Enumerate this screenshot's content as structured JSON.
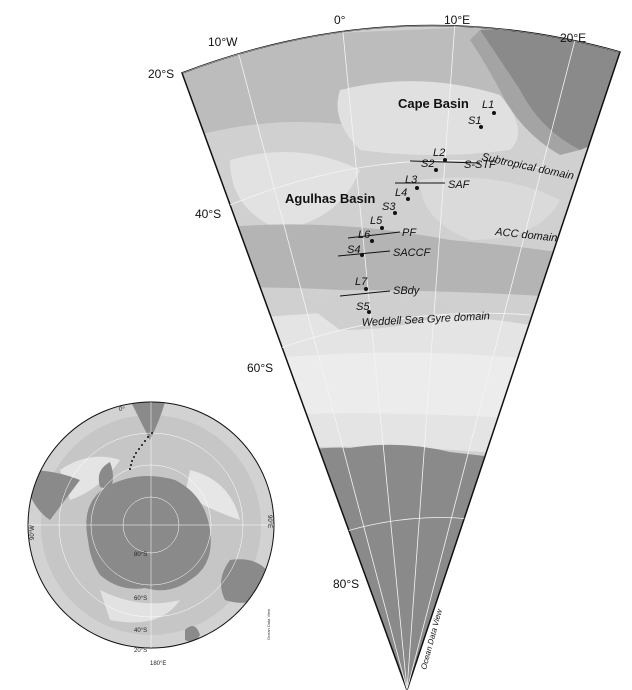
{
  "main_map": {
    "lat_labels": [
      "20°S",
      "40°S",
      "60°S",
      "80°S"
    ],
    "lon_labels": [
      "10°W",
      "0°",
      "10°E",
      "20°E"
    ],
    "basins": [
      "Cape Basin",
      "Agulhas Basin"
    ],
    "domains": [
      "Subtropical domain",
      "ACC domain",
      "Weddell Sea Gyre domain"
    ],
    "fronts": [
      "S-STF",
      "SAF",
      "PF",
      "SACCF",
      "SBdy"
    ],
    "stations": [
      "L1",
      "S1",
      "L2",
      "S2",
      "L3",
      "L4",
      "S3",
      "L5",
      "L6",
      "S4",
      "L7",
      "S5"
    ],
    "credit": "Ocean Data View"
  },
  "inset_map": {
    "lon_labels": [
      "0°",
      "90°E",
      "180°E",
      "90°W"
    ],
    "lat_labels": [
      "80°S",
      "60°S",
      "40°S",
      "20°S"
    ],
    "credit": "Ocean Data View"
  },
  "colors": {
    "land": "#8a8a8a",
    "ocean_light": "#e2e2e2",
    "ocean_mid": "#c4c4c4",
    "ocean_dark": "#a8a8a8",
    "line": "#111111"
  }
}
